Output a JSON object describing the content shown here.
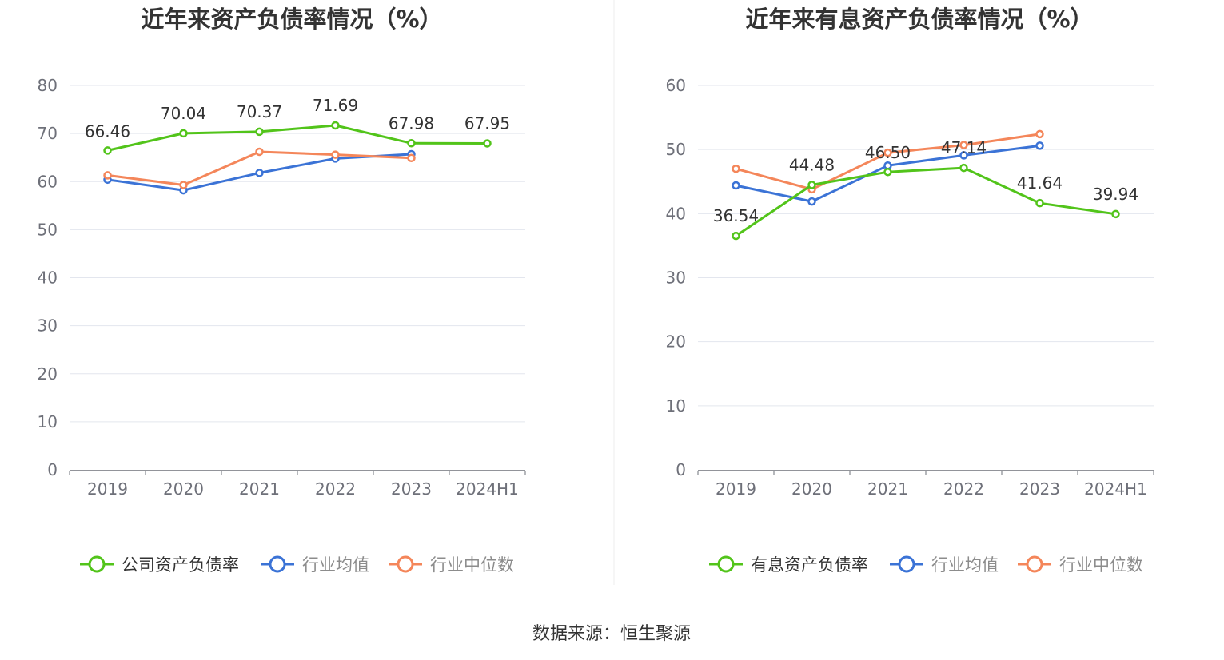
{
  "source_text": "数据来源：恒生聚源",
  "colors": {
    "company": "#52c41a",
    "industry_avg": "#3b73d6",
    "industry_median": "#f4865a",
    "axis": "#6e7079",
    "grid": "#e3e6ee",
    "divider": "#eeeeee"
  },
  "chart_data": [
    {
      "type": "line",
      "title": "近年来资产负债率情况（%）",
      "categories": [
        "2019",
        "2020",
        "2021",
        "2022",
        "2023",
        "2024H1"
      ],
      "ylim": [
        0,
        80
      ],
      "yticks": [
        0,
        10,
        20,
        30,
        40,
        50,
        60,
        70,
        80
      ],
      "grid": true,
      "legend_position": "bottom",
      "series": [
        {
          "name": "公司资产负债率",
          "color": "#52c41a",
          "values": [
            66.46,
            70.04,
            70.37,
            71.69,
            67.98,
            67.95
          ],
          "labels": [
            "66.46",
            "70.04",
            "70.37",
            "71.69",
            "67.98",
            "67.95"
          ]
        },
        {
          "name": "行业均值",
          "color": "#3b73d6",
          "values": [
            60.4,
            58.2,
            61.8,
            64.8,
            65.7,
            null
          ]
        },
        {
          "name": "行业中位数",
          "color": "#f4865a",
          "values": [
            61.3,
            59.3,
            66.2,
            65.6,
            64.9,
            null
          ]
        }
      ]
    },
    {
      "type": "line",
      "title": "近年来有息资产负债率情况（%）",
      "categories": [
        "2019",
        "2020",
        "2021",
        "2022",
        "2023",
        "2024H1"
      ],
      "ylim": [
        0,
        60
      ],
      "yticks": [
        0,
        10,
        20,
        30,
        40,
        50,
        60
      ],
      "grid": true,
      "legend_position": "bottom",
      "series": [
        {
          "name": "有息资产负债率",
          "color": "#52c41a",
          "values": [
            36.54,
            44.48,
            46.5,
            47.14,
            41.64,
            39.94
          ],
          "labels": [
            "36.54",
            "44.48",
            "46.50",
            "47.14",
            "41.64",
            "39.94"
          ]
        },
        {
          "name": "行业均值",
          "color": "#3b73d6",
          "values": [
            44.4,
            41.9,
            47.5,
            49.1,
            50.6,
            null
          ]
        },
        {
          "name": "行业中位数",
          "color": "#f4865a",
          "values": [
            47.0,
            43.8,
            49.5,
            50.7,
            52.4,
            null
          ]
        }
      ]
    }
  ]
}
